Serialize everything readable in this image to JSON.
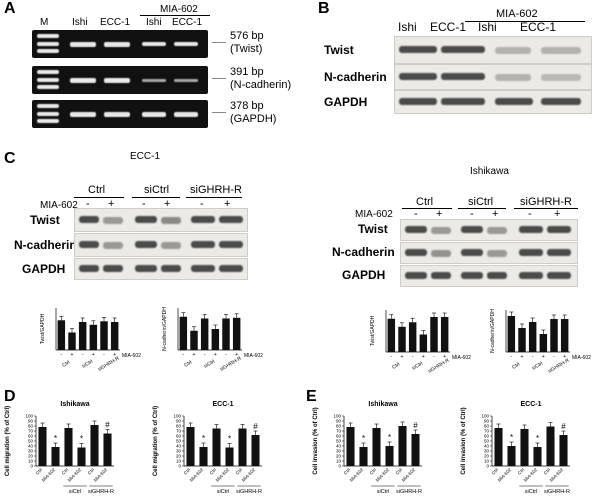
{
  "panel_letters": {
    "A": "A",
    "B": "B",
    "C": "C",
    "D": "D",
    "E": "E"
  },
  "panelA": {
    "lanes": [
      "M",
      "Ishi",
      "ECC-1",
      "Ishi",
      "ECC-1"
    ],
    "treatment": "MIA-602",
    "bands": [
      {
        "size": "576 bp",
        "gene": "(Twist)"
      },
      {
        "size": "391 bp",
        "gene": "(N-cadherin)"
      },
      {
        "size": "378 bp",
        "gene": "(GAPDH)"
      }
    ]
  },
  "panelB": {
    "lanes": [
      "Ishi",
      "ECC-1",
      "Ishi",
      "ECC-1"
    ],
    "treatment": "MIA-602",
    "rows": [
      "Twist",
      "N-cadherin",
      "GAPDH"
    ]
  },
  "panelC": {
    "left": {
      "title": "ECC-1",
      "groups": [
        "Ctrl",
        "siCtrl",
        "siGHRH-R"
      ],
      "treatment_label": "MIA-602",
      "signs": [
        "-",
        "+",
        "-",
        "+",
        "-",
        "+"
      ],
      "rows": [
        "Twist",
        "N-cadherin",
        "GAPDH"
      ]
    },
    "right": {
      "title": "Ishikawa",
      "groups": [
        "Ctrl",
        "siCtrl",
        "siGHRH-R"
      ],
      "treatment_label": "MIA-602",
      "signs": [
        "-",
        "+",
        "-",
        "+",
        "-",
        "+"
      ],
      "rows": [
        "Twist",
        "N-cadherin",
        "GAPDH"
      ]
    }
  },
  "chart_data": [
    {
      "type": "bar",
      "panel": "C-ECC-1-Twist",
      "ylabel": "Twist/GAPDH",
      "ylim": [
        0,
        1.2
      ],
      "values": [
        0.85,
        0.5,
        0.8,
        0.72,
        0.82,
        0.8
      ],
      "signs": [
        "-",
        "+",
        "-",
        "+",
        "-",
        "+"
      ],
      "groups": [
        "Ctrl",
        "siCtrl",
        "siGHRH-R"
      ],
      "legend": "MIA-602"
    },
    {
      "type": "bar",
      "panel": "C-ECC-1-Ncad",
      "ylabel": "N-cadherin/GAPDH",
      "ylim": [
        0,
        1.2
      ],
      "values": [
        0.95,
        0.55,
        0.9,
        0.6,
        0.9,
        0.92
      ],
      "signs": [
        "-",
        "+",
        "-",
        "+",
        "-",
        "+"
      ],
      "groups": [
        "Ctrl",
        "siCtrl",
        "siGHRH-R"
      ],
      "legend": "MIA-602"
    },
    {
      "type": "bar",
      "panel": "C-Ishikawa-Twist",
      "ylabel": "Twist/GAPDH",
      "ylim": [
        0,
        1.2
      ],
      "values": [
        0.95,
        0.72,
        0.85,
        0.5,
        1.0,
        1.0
      ],
      "signs": [
        "-",
        "+",
        "-",
        "+",
        "-",
        "+"
      ],
      "groups": [
        "Ctrl",
        "siCtrl",
        "siGHRH-R"
      ],
      "legend": "MIA-602"
    },
    {
      "type": "bar",
      "panel": "C-Ishikawa-Ncad",
      "ylabel": "N-cadherin/GAPDH",
      "ylim": [
        0,
        1.4
      ],
      "values": [
        1.2,
        0.8,
        1.0,
        0.6,
        1.1,
        1.1
      ],
      "signs": [
        "-",
        "+",
        "-",
        "+",
        "-",
        "+"
      ],
      "groups": [
        "Ctrl",
        "siCtrl",
        "siGHRH-R"
      ],
      "legend": "MIA-602"
    },
    {
      "type": "bar",
      "panel": "D-Ishikawa",
      "title": "Ishikawa",
      "ylabel": "Cell migration (% of Ctrl)",
      "ylim": [
        0,
        100
      ],
      "yticks": [
        0,
        10,
        20,
        30,
        40,
        50,
        60,
        70,
        80,
        90,
        100
      ],
      "categories": [
        "Ctrl",
        "MIA-602",
        "Ctrl",
        "MIA-602",
        "Ctrl",
        "MIA-602"
      ],
      "groups": [
        "siCtrl",
        "siGHRH-R"
      ],
      "values": [
        78,
        38,
        76,
        37,
        82,
        65
      ],
      "marks": [
        "",
        "*",
        "",
        "*",
        "",
        "#"
      ]
    },
    {
      "type": "bar",
      "panel": "D-ECC-1",
      "title": "ECC-1",
      "ylabel": "Cell migration (% of Ctrl)",
      "ylim": [
        0,
        100
      ],
      "yticks": [
        0,
        10,
        20,
        30,
        40,
        50,
        60,
        70,
        80,
        90,
        100
      ],
      "categories": [
        "Ctrl",
        "MIA-602",
        "Ctrl",
        "MIA-602",
        "Ctrl",
        "MIA-602"
      ],
      "groups": [
        "siCtrl",
        "siGHRH-R"
      ],
      "values": [
        78,
        38,
        75,
        37,
        75,
        62
      ],
      "marks": [
        "",
        "*",
        "",
        "*",
        "",
        "#"
      ]
    },
    {
      "type": "bar",
      "panel": "E-Ishikawa",
      "title": "Ishikawa",
      "ylabel": "Cell invasion (% of Ctrl)",
      "ylim": [
        0,
        100
      ],
      "yticks": [
        0,
        10,
        20,
        30,
        40,
        50,
        60,
        70,
        80,
        90,
        100
      ],
      "categories": [
        "Ctrl",
        "MIA-602",
        "Ctrl",
        "MIA-602",
        "Ctrl",
        "MIA-602"
      ],
      "groups": [
        "siCtrl",
        "siGHRH-R"
      ],
      "values": [
        78,
        38,
        76,
        40,
        80,
        64
      ],
      "marks": [
        "",
        "*",
        "",
        "*",
        "",
        "#"
      ]
    },
    {
      "type": "bar",
      "panel": "E-ECC-1",
      "title": "ECC-1",
      "ylabel": "Cell invasion (% of Ctrl)",
      "ylim": [
        0,
        100
      ],
      "yticks": [
        0,
        10,
        20,
        30,
        40,
        50,
        60,
        70,
        80,
        90,
        100
      ],
      "categories": [
        "Ctrl",
        "MIA-602",
        "Ctrl",
        "MIA-602",
        "Ctrl",
        "MIA-602"
      ],
      "groups": [
        "siCtrl",
        "siGHRH-R"
      ],
      "values": [
        76,
        40,
        74,
        38,
        79,
        62
      ],
      "marks": [
        "",
        "*",
        "",
        "*",
        "",
        "#"
      ]
    }
  ]
}
